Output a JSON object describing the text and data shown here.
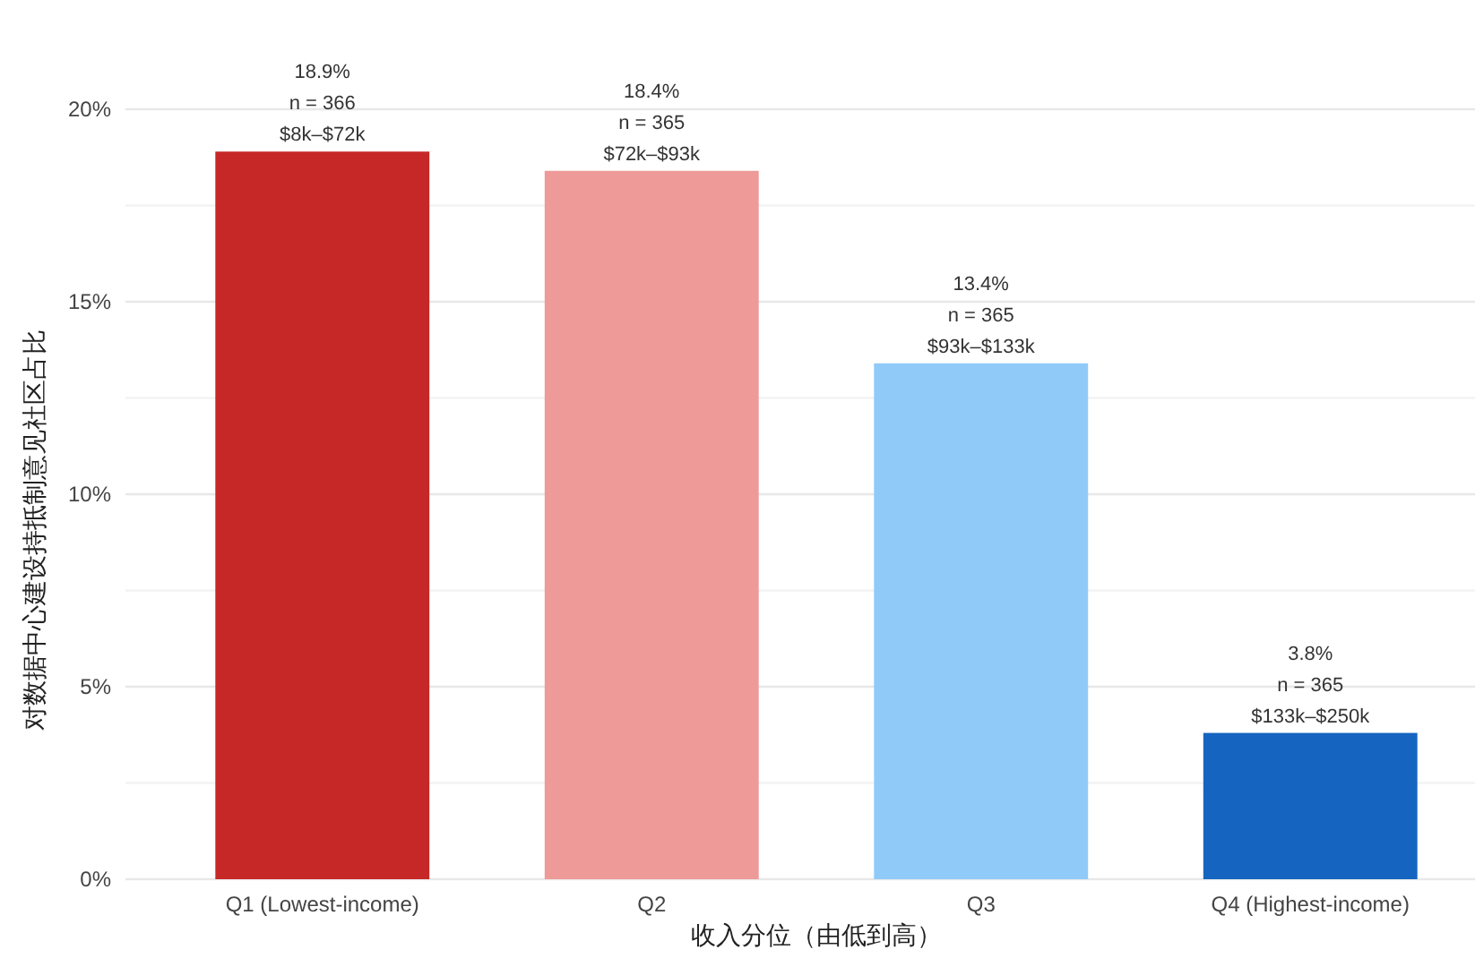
{
  "chart_data": {
    "type": "bar",
    "xlabel": "收入分位（由低到高）",
    "ylabel": "对数据中心建设持抵制意见社区占比",
    "categories": [
      "Q1 (Lowest-income)",
      "Q2",
      "Q3",
      "Q4 (Highest-income)"
    ],
    "values": [
      18.9,
      18.4,
      13.4,
      3.8
    ],
    "colors": [
      "#c62828",
      "#ee9a98",
      "#90caf9",
      "#1565c0"
    ],
    "value_labels": [
      "18.9%\nn = 366\n$8k–$72k",
      "18.4%\nn = 365\n$72k–$93k",
      "13.4%\nn = 365\n$93k–$133k",
      "3.8%\nn = 365\n$133k–$250k"
    ],
    "ylim": [
      0,
      20
    ],
    "yticks": [
      {
        "value": 0,
        "label": "0%"
      },
      {
        "value": 2.5,
        "label": null
      },
      {
        "value": 5,
        "label": "5%"
      },
      {
        "value": 7.5,
        "label": null
      },
      {
        "value": 10,
        "label": "10%"
      },
      {
        "value": 12.5,
        "label": null
      },
      {
        "value": 15,
        "label": "15%"
      },
      {
        "value": 17.5,
        "label": null
      },
      {
        "value": 20,
        "label": "20%"
      }
    ],
    "grid": "y"
  }
}
